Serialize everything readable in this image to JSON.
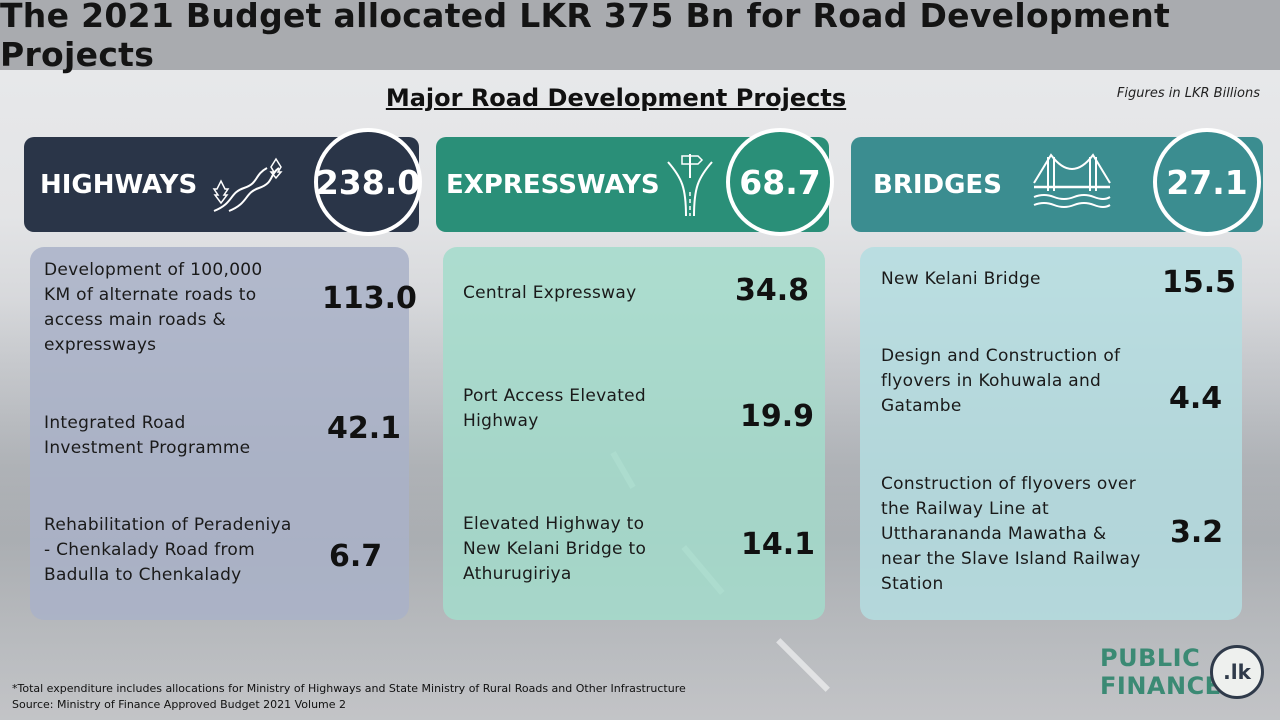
{
  "title": "The 2021 Budget allocated LKR 375 Bn for Road Development Projects",
  "subtitle": "Major Road Development Projects",
  "note": "Figures in LKR Billions",
  "categories": [
    {
      "label": "HIGHWAYS",
      "total": "238.0",
      "color": "#2a3548",
      "panel_color": "#a9b2c8",
      "icon": "winding-road-trees-icon",
      "items": [
        {
          "name": "Development of 100,000 KM of alternate roads to access main roads & expressways",
          "value": "113.0"
        },
        {
          "name": "Integrated Road Investment Programme",
          "value": "42.1"
        },
        {
          "name": "Rehabilitation of Peradeniya - Chenkalady Road from Badulla to Chenkalady",
          "value": "6.7"
        }
      ]
    },
    {
      "label": "EXPRESSWAYS",
      "total": "68.7",
      "color": "#2a8f78",
      "panel_color": "#a3dccb",
      "icon": "road-junction-sign-icon",
      "items": [
        {
          "name": "Central Expressway",
          "value": "34.8"
        },
        {
          "name": "Port Access Elevated Highway",
          "value": "19.9"
        },
        {
          "name": "Elevated Highway to New Kelani Bridge to Athurugiriya",
          "value": "14.1"
        }
      ]
    },
    {
      "label": "BRIDGES",
      "total": "27.1",
      "color": "#3b8d90",
      "panel_color": "#b4dde0",
      "icon": "suspension-bridge-icon",
      "items": [
        {
          "name": "New Kelani Bridge",
          "value": "15.5"
        },
        {
          "name": "Design and Construction of flyovers in Kohuwala and Gatambe",
          "value": "4.4"
        },
        {
          "name": "Construction of flyovers over the Railway Line at Uttharananda Mawatha & near the Slave Island Railway Station",
          "value": "3.2"
        }
      ]
    }
  ],
  "footer": {
    "line1": "*Total expenditure includes allocations for Ministry of Highways and State Ministry of Rural Roads and Other Infrastructure",
    "line2": "Source: Ministry of Finance Approved Budget 2021 Volume 2"
  },
  "logo": {
    "word1": "PUBLIC",
    "word2": "FINANCE",
    "seal": ".lk"
  }
}
